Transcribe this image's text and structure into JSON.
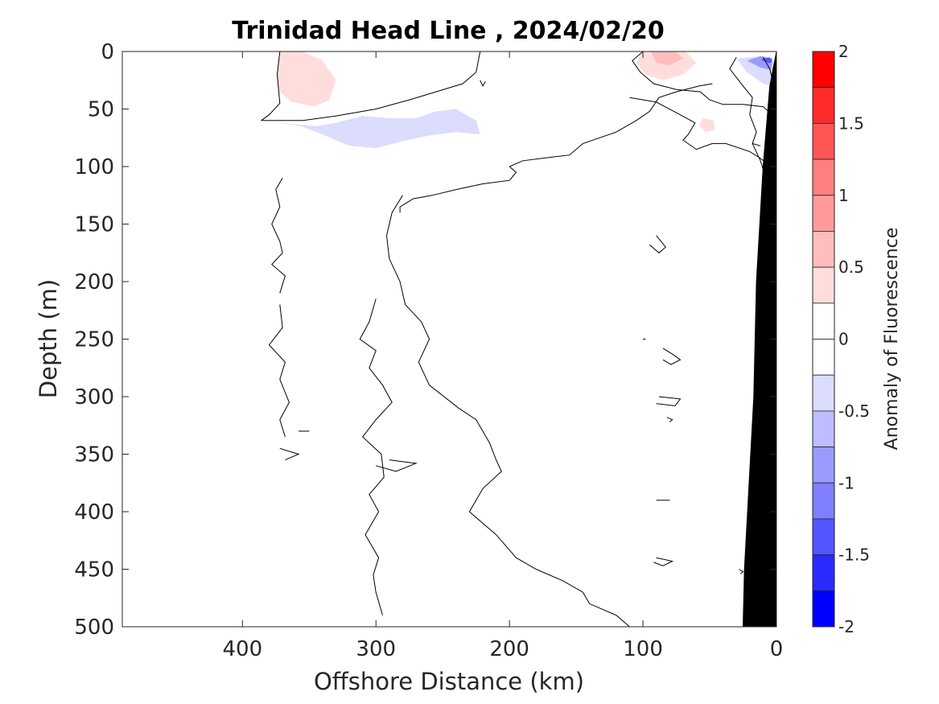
{
  "chart_data": {
    "type": "heatmap",
    "title": "Trinidad Head Line , 2024/02/20",
    "xlabel": "Offshore Distance (km)",
    "ylabel": "Depth (m)",
    "x_ticks": [
      400,
      300,
      200,
      100,
      0
    ],
    "y_ticks": [
      0,
      50,
      100,
      150,
      200,
      250,
      300,
      350,
      400,
      450,
      500
    ],
    "xlim": [
      490,
      0
    ],
    "ylim": [
      0,
      500
    ],
    "x_reversed": true,
    "y_reversed": true,
    "colorbar": {
      "label": "Anomaly of Fluorescence",
      "ticks": [
        2,
        1.5,
        1,
        0.5,
        0,
        -0.5,
        -1,
        -1.5,
        -2
      ],
      "range": [
        -2,
        2
      ],
      "levels": [
        {
          "from": 1.75,
          "to": 2.0,
          "color": "#ff0000"
        },
        {
          "from": 1.5,
          "to": 1.75,
          "color": "#ff2a2a"
        },
        {
          "from": 1.25,
          "to": 1.5,
          "color": "#ff5555"
        },
        {
          "from": 1.0,
          "to": 1.25,
          "color": "#ff7f7f"
        },
        {
          "from": 0.75,
          "to": 1.0,
          "color": "#ff9a9a"
        },
        {
          "from": 0.5,
          "to": 0.75,
          "color": "#ffbdbd"
        },
        {
          "from": 0.25,
          "to": 0.5,
          "color": "#ffdddd"
        },
        {
          "from": 0.0,
          "to": 0.25,
          "color": "#ffffff"
        },
        {
          "from": -0.25,
          "to": 0.0,
          "color": "#ffffff"
        },
        {
          "from": -0.5,
          "to": -0.25,
          "color": "#dcdcff"
        },
        {
          "from": -0.75,
          "to": -0.5,
          "color": "#bdbdff"
        },
        {
          "from": -1.0,
          "to": -0.75,
          "color": "#9a9aff"
        },
        {
          "from": -1.25,
          "to": -1.0,
          "color": "#7f7fff"
        },
        {
          "from": -1.5,
          "to": -1.25,
          "color": "#5555ff"
        },
        {
          "from": -1.75,
          "to": -1.5,
          "color": "#2a2aff"
        },
        {
          "from": -2.0,
          "to": -1.75,
          "color": "#0000ff"
        }
      ]
    },
    "anomaly_patches": [
      {
        "value": 0.4,
        "points": [
          [
            372,
            0
          ],
          [
            355,
            0
          ],
          [
            340,
            8
          ],
          [
            330,
            25
          ],
          [
            335,
            42
          ],
          [
            346,
            48
          ],
          [
            363,
            44
          ],
          [
            372,
            35
          ],
          [
            374,
            20
          ]
        ]
      },
      {
        "value": 0.4,
        "points": [
          [
            100,
            0
          ],
          [
            68,
            0
          ],
          [
            60,
            10
          ],
          [
            70,
            20
          ],
          [
            85,
            25
          ],
          [
            98,
            20
          ],
          [
            105,
            10
          ]
        ]
      },
      {
        "value": 0.6,
        "points": [
          [
            94,
            0
          ],
          [
            76,
            0
          ],
          [
            70,
            6
          ],
          [
            80,
            12
          ],
          [
            90,
            10
          ]
        ]
      },
      {
        "value": 0.4,
        "points": [
          [
            55,
            58
          ],
          [
            47,
            60
          ],
          [
            46,
            68
          ],
          [
            53,
            70
          ],
          [
            58,
            64
          ]
        ]
      },
      {
        "value": -0.4,
        "points": [
          [
            372,
            62
          ],
          [
            356,
            65
          ],
          [
            340,
            72
          ],
          [
            320,
            82
          ],
          [
            300,
            84
          ],
          [
            280,
            78
          ],
          [
            260,
            73
          ],
          [
            240,
            70
          ],
          [
            222,
            72
          ],
          [
            225,
            60
          ],
          [
            240,
            50
          ],
          [
            255,
            52
          ],
          [
            270,
            58
          ],
          [
            290,
            58
          ],
          [
            310,
            56
          ],
          [
            330,
            62
          ],
          [
            345,
            65
          ]
        ]
      },
      {
        "value": -0.4,
        "points": [
          [
            30,
            6
          ],
          [
            22,
            18
          ],
          [
            10,
            28
          ],
          [
            3,
            30
          ],
          [
            2,
            10
          ],
          [
            10,
            4
          ]
        ]
      },
      {
        "value": -0.9,
        "points": [
          [
            22,
            8
          ],
          [
            12,
            14
          ],
          [
            4,
            16
          ],
          [
            3,
            6
          ],
          [
            12,
            4
          ]
        ]
      },
      {
        "value": -1.4,
        "points": [
          [
            12,
            7
          ],
          [
            6,
            10
          ],
          [
            3,
            9
          ],
          [
            5,
            5
          ]
        ]
      }
    ],
    "zero_contours": [
      [
        [
          372,
          0
        ],
        [
          374,
          20
        ],
        [
          372,
          45
        ],
        [
          380,
          55
        ],
        [
          386,
          60
        ]
      ],
      [
        [
          386,
          60
        ],
        [
          355,
          60
        ],
        [
          330,
          56
        ],
        [
          300,
          50
        ],
        [
          275,
          42
        ],
        [
          255,
          35
        ],
        [
          235,
          28
        ],
        [
          225,
          18
        ],
        [
          222,
          0
        ]
      ],
      [
        [
          100,
          0
        ],
        [
          108,
          8
        ],
        [
          102,
          18
        ],
        [
          92,
          28
        ],
        [
          75,
          33
        ],
        [
          57,
          35
        ],
        [
          50,
          42
        ],
        [
          40,
          46
        ]
      ],
      [
        [
          40,
          46
        ],
        [
          25,
          46
        ],
        [
          10,
          48
        ],
        [
          3,
          55
        ],
        [
          2,
          75
        ]
      ],
      [
        [
          110,
          40
        ],
        [
          90,
          44
        ],
        [
          72,
          55
        ],
        [
          61,
          62
        ],
        [
          66,
          72
        ],
        [
          70,
          77
        ],
        [
          60,
          85
        ],
        [
          48,
          80
        ],
        [
          38,
          80
        ],
        [
          20,
          87
        ],
        [
          13,
          92
        ],
        [
          4,
          100
        ]
      ],
      [
        [
          200,
          100
        ],
        [
          195,
          105
        ],
        [
          200,
          112
        ],
        [
          220,
          115
        ],
        [
          240,
          120
        ],
        [
          258,
          125
        ],
        [
          272,
          128
        ],
        [
          282,
          135
        ],
        [
          282,
          140
        ]
      ],
      [
        [
          200,
          100
        ],
        [
          190,
          95
        ],
        [
          170,
          92
        ],
        [
          155,
          90
        ],
        [
          145,
          80
        ],
        [
          120,
          70
        ],
        [
          105,
          60
        ],
        [
          95,
          52
        ],
        [
          88,
          40
        ],
        [
          75,
          35
        ],
        [
          58,
          30
        ],
        [
          48,
          28
        ]
      ],
      [
        [
          370,
          110
        ],
        [
          375,
          120
        ],
        [
          372,
          135
        ],
        [
          378,
          150
        ],
        [
          372,
          165
        ],
        [
          370,
          175
        ],
        [
          378,
          185
        ],
        [
          368,
          195
        ],
        [
          372,
          210
        ]
      ],
      [
        [
          280,
          125
        ],
        [
          288,
          140
        ],
        [
          292,
          160
        ],
        [
          290,
          180
        ],
        [
          282,
          200
        ],
        [
          278,
          220
        ],
        [
          266,
          235
        ],
        [
          260,
          250
        ],
        [
          268,
          270
        ],
        [
          260,
          290
        ],
        [
          238,
          310
        ],
        [
          225,
          320
        ],
        [
          215,
          340
        ],
        [
          210,
          355
        ],
        [
          206,
          365
        ],
        [
          220,
          380
        ],
        [
          230,
          400
        ],
        [
          210,
          420
        ],
        [
          195,
          440
        ],
        [
          180,
          450
        ],
        [
          160,
          460
        ],
        [
          145,
          470
        ],
        [
          140,
          480
        ],
        [
          120,
          490
        ],
        [
          110,
          500
        ]
      ],
      [
        [
          372,
          220
        ],
        [
          370,
          240
        ],
        [
          380,
          255
        ],
        [
          368,
          270
        ],
        [
          372,
          285
        ],
        [
          365,
          305
        ],
        [
          372,
          320
        ],
        [
          368,
          335
        ]
      ],
      [
        [
          300,
          215
        ],
        [
          305,
          235
        ],
        [
          312,
          250
        ],
        [
          300,
          260
        ],
        [
          305,
          275
        ],
        [
          295,
          290
        ],
        [
          288,
          305
        ],
        [
          300,
          320
        ],
        [
          310,
          335
        ],
        [
          296,
          350
        ],
        [
          294,
          370
        ],
        [
          305,
          385
        ],
        [
          298,
          400
        ],
        [
          308,
          420
        ],
        [
          298,
          440
        ],
        [
          302,
          455
        ],
        [
          300,
          470
        ],
        [
          295,
          490
        ]
      ],
      [
        [
          372,
          345
        ],
        [
          358,
          350
        ],
        [
          368,
          355
        ]
      ],
      [
        [
          300,
          360
        ],
        [
          285,
          365
        ],
        [
          270,
          358
        ],
        [
          290,
          355
        ]
      ],
      [
        [
          90,
          160
        ],
        [
          83,
          170
        ],
        [
          88,
          175
        ],
        [
          95,
          168
        ]
      ],
      [
        [
          85,
          258
        ],
        [
          78,
          263
        ],
        [
          72,
          268
        ],
        [
          79,
          272
        ],
        [
          85,
          268
        ]
      ],
      [
        [
          88,
          300
        ],
        [
          72,
          302
        ],
        [
          76,
          308
        ],
        [
          90,
          306
        ]
      ],
      [
        [
          82,
          318
        ],
        [
          78,
          320
        ],
        [
          80,
          322
        ]
      ],
      [
        [
          90,
          440
        ],
        [
          78,
          443
        ],
        [
          85,
          447
        ],
        [
          92,
          444
        ]
      ],
      [
        [
          28,
          450
        ],
        [
          25,
          452
        ],
        [
          27,
          454
        ]
      ]
    ],
    "coastal_contours": [
      [
        [
          30,
          5
        ],
        [
          35,
          15
        ],
        [
          25,
          30
        ],
        [
          18,
          40
        ],
        [
          20,
          55
        ],
        [
          15,
          70
        ],
        [
          18,
          80
        ],
        [
          12,
          95
        ],
        [
          8,
          110
        ],
        [
          10,
          130
        ],
        [
          5,
          150
        ]
      ],
      [
        [
          10,
          5
        ],
        [
          5,
          15
        ],
        [
          2,
          30
        ]
      ]
    ],
    "land_mask": [
      [
        0,
        0
      ],
      [
        0,
        500
      ],
      [
        25,
        500
      ],
      [
        24,
        450
      ],
      [
        17,
        300
      ],
      [
        15,
        200
      ],
      [
        10,
        100
      ],
      [
        5,
        30
      ],
      [
        0,
        0
      ]
    ],
    "small_marks": [
      [
        [
          222,
          25
        ],
        [
          220,
          30
        ],
        [
          218,
          26
        ]
      ],
      [
        [
          18,
          80
        ],
        [
          12,
          82
        ]
      ],
      [
        [
          100,
          250
        ],
        [
          98,
          250
        ]
      ],
      [
        [
          358,
          330
        ],
        [
          350,
          330
        ]
      ],
      [
        [
          90,
          390
        ],
        [
          80,
          390
        ]
      ]
    ]
  }
}
